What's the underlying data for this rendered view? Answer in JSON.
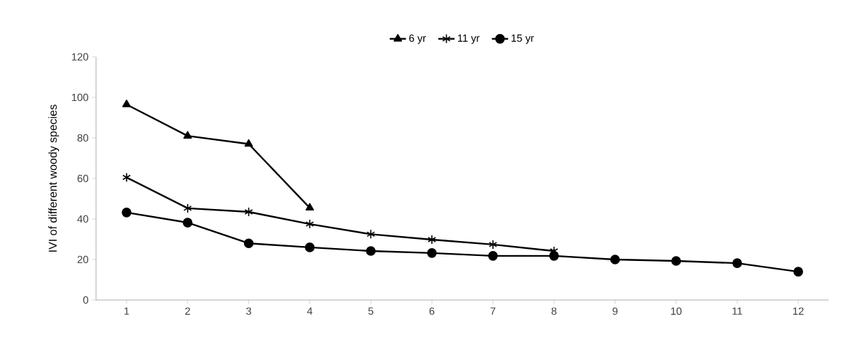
{
  "chart_data": {
    "type": "line",
    "ylabel": "IVI of different woody species",
    "categories": [
      "1",
      "2",
      "3",
      "4",
      "5",
      "6",
      "7",
      "8",
      "9",
      "10",
      "11",
      "12"
    ],
    "series": [
      {
        "name": "6 yr",
        "color": "#000000",
        "marker": "triangle",
        "values": [
          96.5,
          81,
          77,
          45.5,
          null,
          null,
          null,
          null,
          null,
          null,
          null,
          null
        ]
      },
      {
        "name": "11 yr",
        "color": "#000000",
        "marker": "cross",
        "values": [
          60.5,
          45.3,
          43.5,
          37.5,
          32.5,
          29.8,
          27.4,
          24.2,
          null,
          null,
          null,
          null
        ]
      },
      {
        "name": "15 yr",
        "color": "#000000",
        "marker": "circle",
        "values": [
          43.2,
          38.2,
          28,
          26,
          24.2,
          23.2,
          21.8,
          21.8,
          20,
          19.3,
          18.2,
          14
        ]
      }
    ],
    "ylim": [
      0,
      120
    ],
    "yticks": [
      0,
      20,
      40,
      60,
      80,
      100,
      120
    ],
    "legend": "top",
    "grid": false,
    "line_style": "solid"
  }
}
